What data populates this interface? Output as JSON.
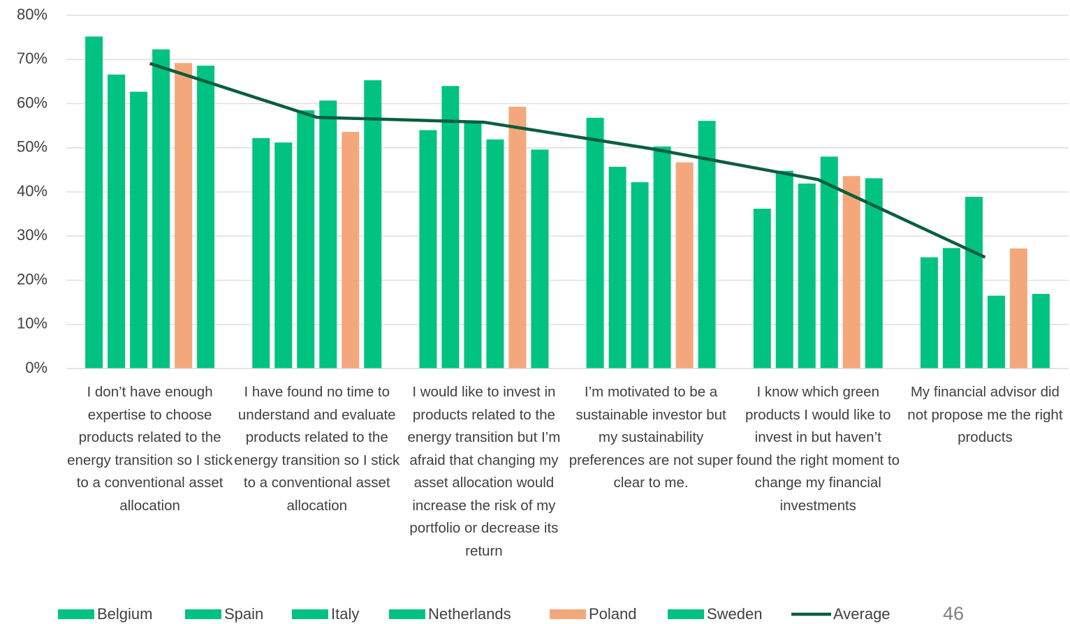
{
  "chart_data": {
    "type": "bar",
    "categories": [
      "I don’t have enough expertise to choose products related to the energy transition so I stick to a conventional asset allocation",
      "I have found no time to understand and evaluate products related to the energy transition so I stick to a conventional asset allocation",
      "I would like to invest in products related to the energy transition but I’m afraid that changing my asset allocation would increase the risk of my portfolio or decrease its return",
      "I’m motivated to be a sustainable investor but my sustainability preferences are not super clear to me.",
      "I know which green products I would like to invest in but haven’t found the right moment to change my financial investments",
      "My financial advisor did not propose me the right products"
    ],
    "series": [
      {
        "name": "Belgium",
        "color": "#00c281",
        "values": [
          75.2,
          52.2,
          54.0,
          56.8,
          36.2,
          25.2
        ]
      },
      {
        "name": "Spain",
        "color": "#00c281",
        "values": [
          66.6,
          51.2,
          64.0,
          45.7,
          44.8,
          27.3
        ]
      },
      {
        "name": "Italy",
        "color": "#00c281",
        "values": [
          62.7,
          58.5,
          55.8,
          42.2,
          41.9,
          38.9
        ]
      },
      {
        "name": "Netherlands",
        "color": "#00c281",
        "values": [
          72.3,
          60.7,
          51.9,
          50.3,
          48.0,
          16.5
        ]
      },
      {
        "name": "Poland",
        "color": "#f5a77c",
        "values": [
          69.2,
          53.6,
          59.3,
          46.7,
          43.6,
          27.2
        ]
      },
      {
        "name": "Sweden",
        "color": "#00c281",
        "values": [
          68.6,
          65.3,
          49.6,
          56.1,
          43.1,
          16.9
        ]
      },
      {
        "name": "Average",
        "type": "line",
        "color": "#0b5e3d",
        "values": [
          69.1,
          56.9,
          55.8,
          49.8,
          42.8,
          25.2
        ]
      }
    ],
    "ylim": [
      0,
      80
    ],
    "yticks": [
      {
        "value": 0,
        "label": "0%"
      },
      {
        "value": 10,
        "label": "10%"
      },
      {
        "value": 20,
        "label": "20%"
      },
      {
        "value": 30,
        "label": "30%"
      },
      {
        "value": 40,
        "label": "40%"
      },
      {
        "value": 50,
        "label": "50%"
      },
      {
        "value": 60,
        "label": "60%"
      },
      {
        "value": 70,
        "label": "70%"
      },
      {
        "value": 80,
        "label": "80%"
      }
    ],
    "grid": true
  },
  "page_number": "46"
}
